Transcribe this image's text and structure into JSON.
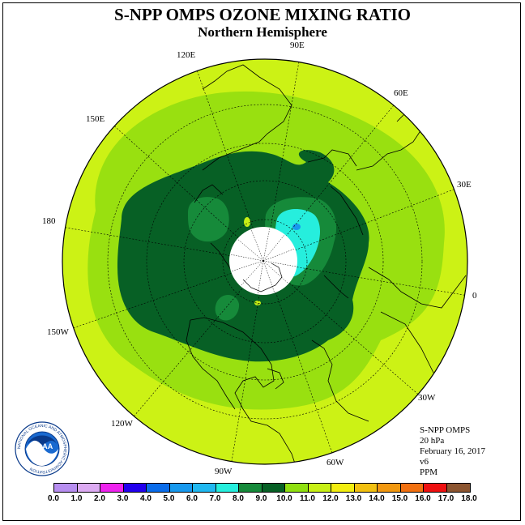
{
  "header": {
    "title": "S-NPP OMPS OZONE MIXING RATIO",
    "subtitle": "Northern Hemisphere"
  },
  "map": {
    "projection": "polar stereographic",
    "longitude_labels": [
      "90E",
      "60E",
      "30E",
      "0",
      "30W",
      "60W",
      "90W",
      "120W",
      "150W",
      "180",
      "150E",
      "120E"
    ]
  },
  "info": {
    "instrument": "S-NPP OMPS",
    "level": "20 hPa",
    "date": "February 16, 2017",
    "version": "v6",
    "units": "PPM"
  },
  "logo": {
    "text": "NOAA",
    "ring_text": "NATIONAL OCEANIC AND ATMOSPHERIC ADMINISTRATION",
    "ring_text_bottom": "U.S. DEPARTMENT OF COMMERCE"
  },
  "colorbar": {
    "ticks": [
      "0.0",
      "1.0",
      "2.0",
      "3.0",
      "4.0",
      "5.0",
      "6.0",
      "7.0",
      "8.0",
      "9.0",
      "10.0",
      "11.0",
      "12.0",
      "13.0",
      "14.0",
      "15.0",
      "16.0",
      "17.0",
      "18.0"
    ],
    "colors": [
      "#b78ef0",
      "#dcaaf2",
      "#ee22ee",
      "#2200ee",
      "#0a6cea",
      "#1899ee",
      "#20b8f0",
      "#26eedd",
      "#168a3a",
      "#076025",
      "#90e010",
      "#c8f015",
      "#f2ee10",
      "#f2c010",
      "#f29810",
      "#f27010",
      "#ee1010",
      "#8c5530"
    ]
  },
  "legend_colors": {
    "outer": "#ccf215",
    "band11": "#99e010",
    "band9": "#168a3a",
    "band10": "#076025",
    "band8": "#26eedd",
    "band7": "#1899ee"
  }
}
